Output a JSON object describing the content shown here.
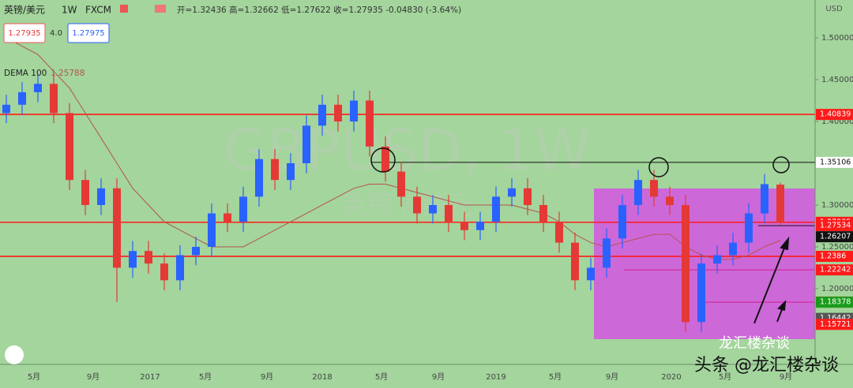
{
  "chart_data": {
    "type": "candlestick",
    "header": {
      "symbol": "英镑/美元",
      "interval": "1W",
      "source": "FXCM",
      "ohlc_text": "开=1.32436 高=1.32662 低=1.27622 收=1.27935 -0.04830 (-3.64%)",
      "bid": "1.27935",
      "spread": "4.0",
      "ask": "1.27975"
    },
    "watermark": "GBPUSD, 1W",
    "watermark_sub": "英镑 / 美元",
    "credit": "头条 @龙汇楼杂谈",
    "credit_sub": "龙汇楼杂谈",
    "currency": "USD",
    "categories": [
      "5月",
      "9月",
      "2017",
      "5月",
      "9月",
      "2018",
      "5月",
      "9月",
      "2019",
      "5月",
      "9月",
      "2020",
      "5月",
      "9月"
    ],
    "ohlc": [
      [
        1.41,
        1.432,
        1.398,
        1.42
      ],
      [
        1.42,
        1.447,
        1.408,
        1.435
      ],
      [
        1.435,
        1.457,
        1.423,
        1.445
      ],
      [
        1.445,
        1.457,
        1.398,
        1.41
      ],
      [
        1.41,
        1.422,
        1.318,
        1.33
      ],
      [
        1.33,
        1.342,
        1.288,
        1.3
      ],
      [
        1.3,
        1.332,
        1.288,
        1.32
      ],
      [
        1.32,
        1.332,
        1.184,
        1.225
      ],
      [
        1.225,
        1.257,
        1.213,
        1.245
      ],
      [
        1.245,
        1.257,
        1.218,
        1.23
      ],
      [
        1.23,
        1.242,
        1.198,
        1.21
      ],
      [
        1.21,
        1.252,
        1.198,
        1.24
      ],
      [
        1.24,
        1.262,
        1.228,
        1.25
      ],
      [
        1.25,
        1.302,
        1.238,
        1.29
      ],
      [
        1.29,
        1.302,
        1.268,
        1.28
      ],
      [
        1.28,
        1.322,
        1.268,
        1.31
      ],
      [
        1.31,
        1.367,
        1.298,
        1.355
      ],
      [
        1.355,
        1.367,
        1.318,
        1.33
      ],
      [
        1.33,
        1.362,
        1.318,
        1.35
      ],
      [
        1.35,
        1.407,
        1.338,
        1.395
      ],
      [
        1.395,
        1.432,
        1.383,
        1.42
      ],
      [
        1.42,
        1.432,
        1.388,
        1.4
      ],
      [
        1.4,
        1.437,
        1.388,
        1.425
      ],
      [
        1.425,
        1.437,
        1.358,
        1.37
      ],
      [
        1.37,
        1.382,
        1.328,
        1.34
      ],
      [
        1.34,
        1.352,
        1.298,
        1.31
      ],
      [
        1.31,
        1.322,
        1.278,
        1.29
      ],
      [
        1.29,
        1.312,
        1.278,
        1.3
      ],
      [
        1.3,
        1.312,
        1.268,
        1.28
      ],
      [
        1.28,
        1.292,
        1.258,
        1.27
      ],
      [
        1.27,
        1.292,
        1.258,
        1.28
      ],
      [
        1.28,
        1.322,
        1.268,
        1.31
      ],
      [
        1.31,
        1.332,
        1.298,
        1.32
      ],
      [
        1.32,
        1.332,
        1.288,
        1.3
      ],
      [
        1.3,
        1.312,
        1.268,
        1.28
      ],
      [
        1.28,
        1.292,
        1.243,
        1.255
      ],
      [
        1.255,
        1.267,
        1.198,
        1.21
      ],
      [
        1.21,
        1.237,
        1.198,
        1.225
      ],
      [
        1.225,
        1.272,
        1.213,
        1.26
      ],
      [
        1.26,
        1.312,
        1.248,
        1.3
      ],
      [
        1.3,
        1.342,
        1.288,
        1.33
      ],
      [
        1.33,
        1.342,
        1.298,
        1.31
      ],
      [
        1.31,
        1.322,
        1.288,
        1.3
      ],
      [
        1.3,
        1.312,
        1.148,
        1.16
      ],
      [
        1.16,
        1.242,
        1.148,
        1.23
      ],
      [
        1.23,
        1.252,
        1.218,
        1.24
      ],
      [
        1.24,
        1.267,
        1.228,
        1.255
      ],
      [
        1.255,
        1.302,
        1.243,
        1.29
      ],
      [
        1.29,
        1.337,
        1.278,
        1.325
      ],
      [
        1.32436,
        1.32662,
        1.27622,
        1.27935
      ]
    ],
    "up_color": "#2962ff",
    "down_color": "#e53935",
    "indicator": {
      "name": "DEMA 100",
      "value": "1.25788",
      "color": "#b5534e",
      "values": [
        1.5,
        1.49,
        1.48,
        1.46,
        1.44,
        1.41,
        1.38,
        1.35,
        1.32,
        1.3,
        1.28,
        1.27,
        1.26,
        1.25,
        1.25,
        1.25,
        1.26,
        1.27,
        1.28,
        1.29,
        1.3,
        1.31,
        1.32,
        1.325,
        1.325,
        1.32,
        1.315,
        1.31,
        1.305,
        1.3,
        1.3,
        1.3,
        1.3,
        1.295,
        1.29,
        1.28,
        1.265,
        1.255,
        1.25,
        1.255,
        1.26,
        1.265,
        1.265,
        1.25,
        1.24,
        1.235,
        1.235,
        1.24,
        1.25,
        1.25788
      ]
    },
    "ylim": [
      1.1094,
      1.5453
    ],
    "yticks": [
      {
        "value": 1.2,
        "label": "1.20000"
      },
      {
        "value": 1.25,
        "label": "1.25000"
      },
      {
        "value": 1.3,
        "label": "1.30000"
      },
      {
        "value": 1.35,
        "label": "1.35000"
      },
      {
        "value": 1.4,
        "label": "1.40000"
      },
      {
        "value": 1.45,
        "label": "1.45000"
      },
      {
        "value": 1.5,
        "label": "1.50000"
      }
    ],
    "levels": [
      {
        "value": 1.40839,
        "color": "#ff1a1a"
      },
      {
        "value": 1.35106,
        "color": "#ffffff"
      },
      {
        "value": 1.27935,
        "color": "#ff1a1a"
      },
      {
        "value": 1.27534,
        "color": "#ff1a1a"
      },
      {
        "value": 1.26207,
        "color": "#111111"
      },
      {
        "value": 1.2386,
        "color": "#ff1a1a"
      },
      {
        "value": 1.22242,
        "color": "#ff1a1a"
      },
      {
        "value": 1.18385,
        "color": "#ff1a1a"
      },
      {
        "value": 1.18378,
        "color": "#1a9c1a"
      },
      {
        "value": 1.16442,
        "color": "#555555"
      },
      {
        "value": 1.15721,
        "color": "#ff1a1a"
      }
    ]
  }
}
